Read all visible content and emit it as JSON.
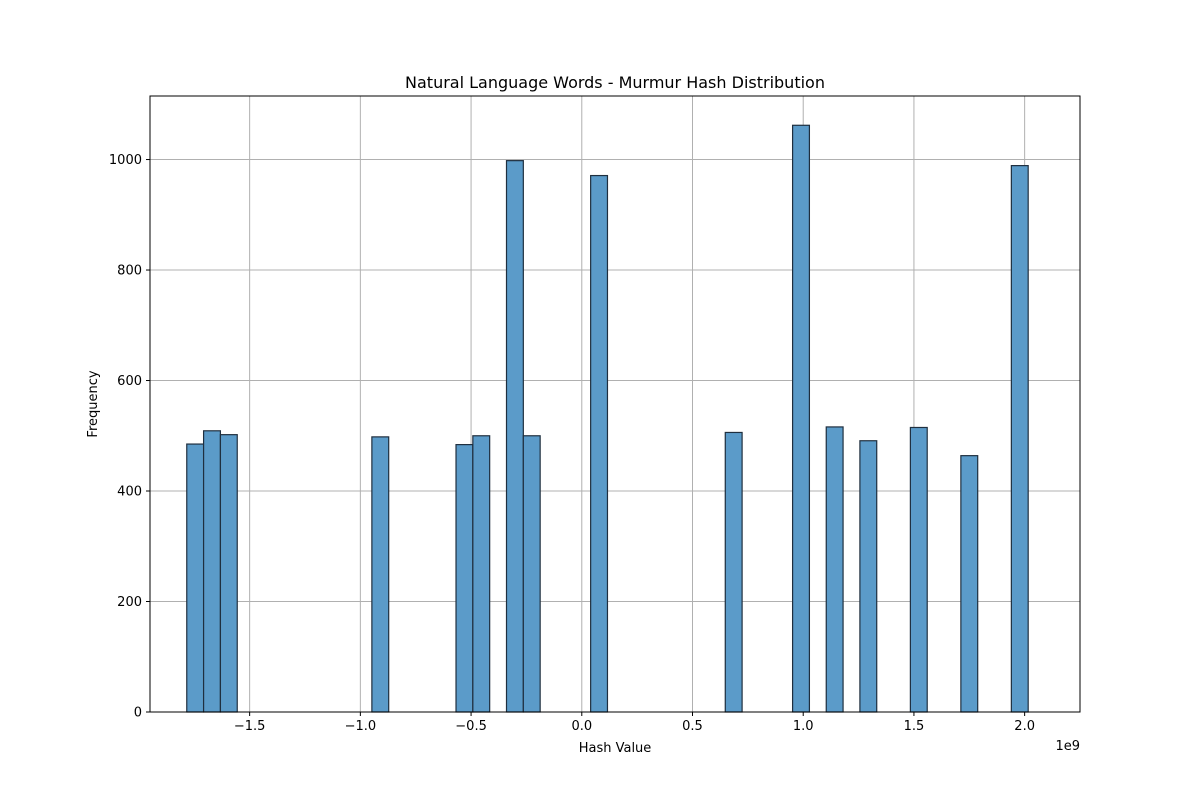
{
  "chart_data": {
    "type": "bar",
    "title": "Natural Language Words - Murmur Hash Distribution",
    "xlabel": "Hash Value",
    "ylabel": "Frequency",
    "x_offset_label": "1e9",
    "x_scale": 1000000000,
    "xlim": [
      -1.95,
      2.25
    ],
    "ylim": [
      0,
      1115
    ],
    "grid": true,
    "bar_color": "#5b9bc9",
    "edge_color": "#1f2f3f",
    "bin_width": 0.076,
    "x_ticks": [
      {
        "value": -1.5,
        "label": "−1.5"
      },
      {
        "value": -1.0,
        "label": "−1.0"
      },
      {
        "value": -0.5,
        "label": "−0.5"
      },
      {
        "value": 0.0,
        "label": "0.0"
      },
      {
        "value": 0.5,
        "label": "0.5"
      },
      {
        "value": 1.0,
        "label": "1.0"
      },
      {
        "value": 1.5,
        "label": "1.5"
      },
      {
        "value": 2.0,
        "label": "2.0"
      }
    ],
    "y_ticks": [
      {
        "value": 0,
        "label": "0"
      },
      {
        "value": 200,
        "label": "200"
      },
      {
        "value": 400,
        "label": "400"
      },
      {
        "value": 600,
        "label": "600"
      },
      {
        "value": 800,
        "label": "800"
      },
      {
        "value": 1000,
        "label": "1000"
      }
    ],
    "bins": [
      {
        "x_start": -1.784,
        "value": 485
      },
      {
        "x_start": -1.708,
        "value": 509
      },
      {
        "x_start": -1.632,
        "value": 502
      },
      {
        "x_start": -0.948,
        "value": 498
      },
      {
        "x_start": -0.568,
        "value": 484
      },
      {
        "x_start": -0.492,
        "value": 500
      },
      {
        "x_start": -0.34,
        "value": 998
      },
      {
        "x_start": -0.264,
        "value": 500
      },
      {
        "x_start": 0.04,
        "value": 971
      },
      {
        "x_start": 0.648,
        "value": 506
      },
      {
        "x_start": 0.952,
        "value": 1062
      },
      {
        "x_start": 1.104,
        "value": 516
      },
      {
        "x_start": 1.256,
        "value": 491
      },
      {
        "x_start": 1.484,
        "value": 515
      },
      {
        "x_start": 1.712,
        "value": 464
      },
      {
        "x_start": 1.94,
        "value": 989
      }
    ]
  }
}
